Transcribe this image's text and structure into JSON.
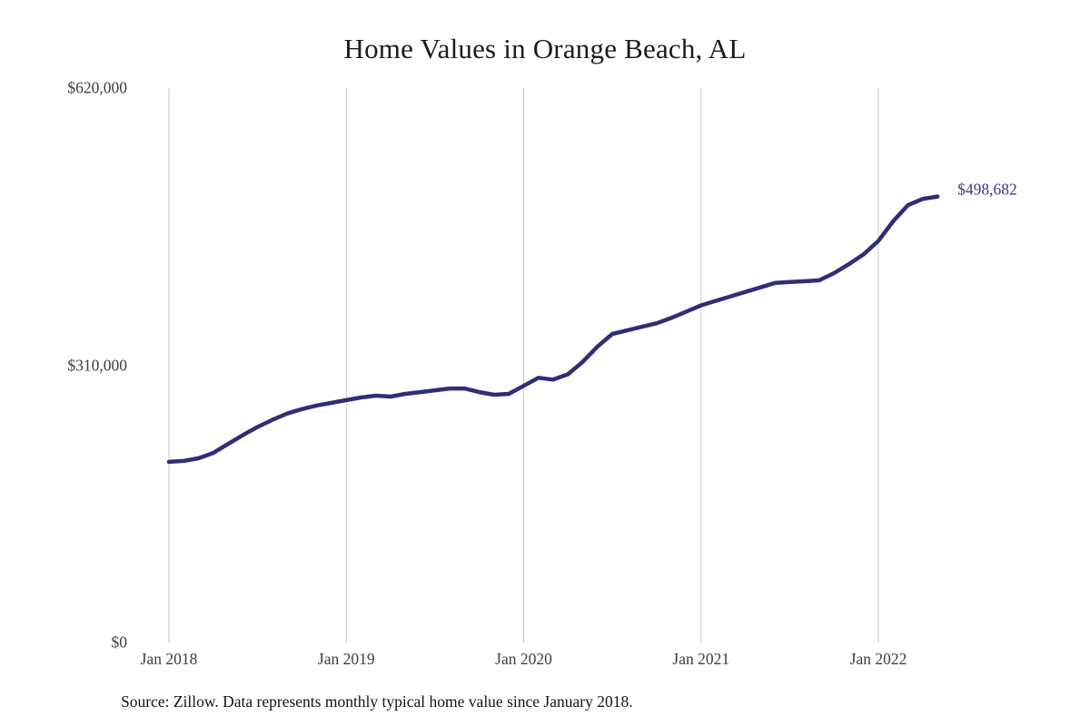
{
  "chart": {
    "title": "Home Values in Orange Beach, AL",
    "end_label": "$498,682",
    "source": "Source: Zillow. Data represents monthly typical home value since January 2018.",
    "y_ticks": [
      {
        "label": "$620,000",
        "value": 620000
      },
      {
        "label": "$310,000",
        "value": 310000
      },
      {
        "label": "$0",
        "value": 0
      }
    ],
    "x_ticks": [
      {
        "label": "Jan 2018",
        "month_index": 0
      },
      {
        "label": "Jan 2019",
        "month_index": 12
      },
      {
        "label": "Jan 2020",
        "month_index": 24
      },
      {
        "label": "Jan 2021",
        "month_index": 36
      },
      {
        "label": "Jan 2022",
        "month_index": 48
      }
    ],
    "colors": {
      "line": "#302d78",
      "end_label": "#3e3b7e",
      "grid": "#c9c9c9",
      "axis_text": "#3d3d3d",
      "title_text": "#1c1c1c"
    }
  },
  "chart_data": {
    "type": "line",
    "title": "Home Values in Orange Beach, AL",
    "xlabel": "",
    "ylabel": "",
    "ylim": [
      0,
      620000
    ],
    "grid": "vertical-only",
    "legend": "none",
    "unit": "USD",
    "frequency": "monthly",
    "latest_value": 498682,
    "latest_value_label": "$498,682",
    "x": [
      "2018-01",
      "2018-02",
      "2018-03",
      "2018-04",
      "2018-05",
      "2018-06",
      "2018-07",
      "2018-08",
      "2018-09",
      "2018-10",
      "2018-11",
      "2018-12",
      "2019-01",
      "2019-02",
      "2019-03",
      "2019-04",
      "2019-05",
      "2019-06",
      "2019-07",
      "2019-08",
      "2019-09",
      "2019-10",
      "2019-11",
      "2019-12",
      "2020-01",
      "2020-02",
      "2020-03",
      "2020-04",
      "2020-05",
      "2020-06",
      "2020-07",
      "2020-08",
      "2020-09",
      "2020-10",
      "2020-11",
      "2020-12",
      "2021-01",
      "2021-02",
      "2021-03",
      "2021-04",
      "2021-05",
      "2021-06",
      "2021-07",
      "2021-08",
      "2021-09",
      "2021-10",
      "2021-11",
      "2021-12",
      "2022-01",
      "2022-02",
      "2022-03",
      "2022-04",
      "2022-05"
    ],
    "values": [
      202000,
      203000,
      206000,
      212000,
      222000,
      232000,
      241000,
      249000,
      256000,
      261000,
      265000,
      268000,
      271000,
      274000,
      276000,
      275000,
      278000,
      280000,
      282000,
      284000,
      284000,
      280000,
      277000,
      278000,
      287000,
      296000,
      294000,
      300000,
      314000,
      331000,
      345000,
      349000,
      353000,
      357000,
      363000,
      370000,
      377000,
      382000,
      387000,
      392000,
      397000,
      402000,
      403000,
      404000,
      405000,
      413000,
      423000,
      434000,
      449000,
      471000,
      489000,
      496000,
      498682
    ]
  }
}
